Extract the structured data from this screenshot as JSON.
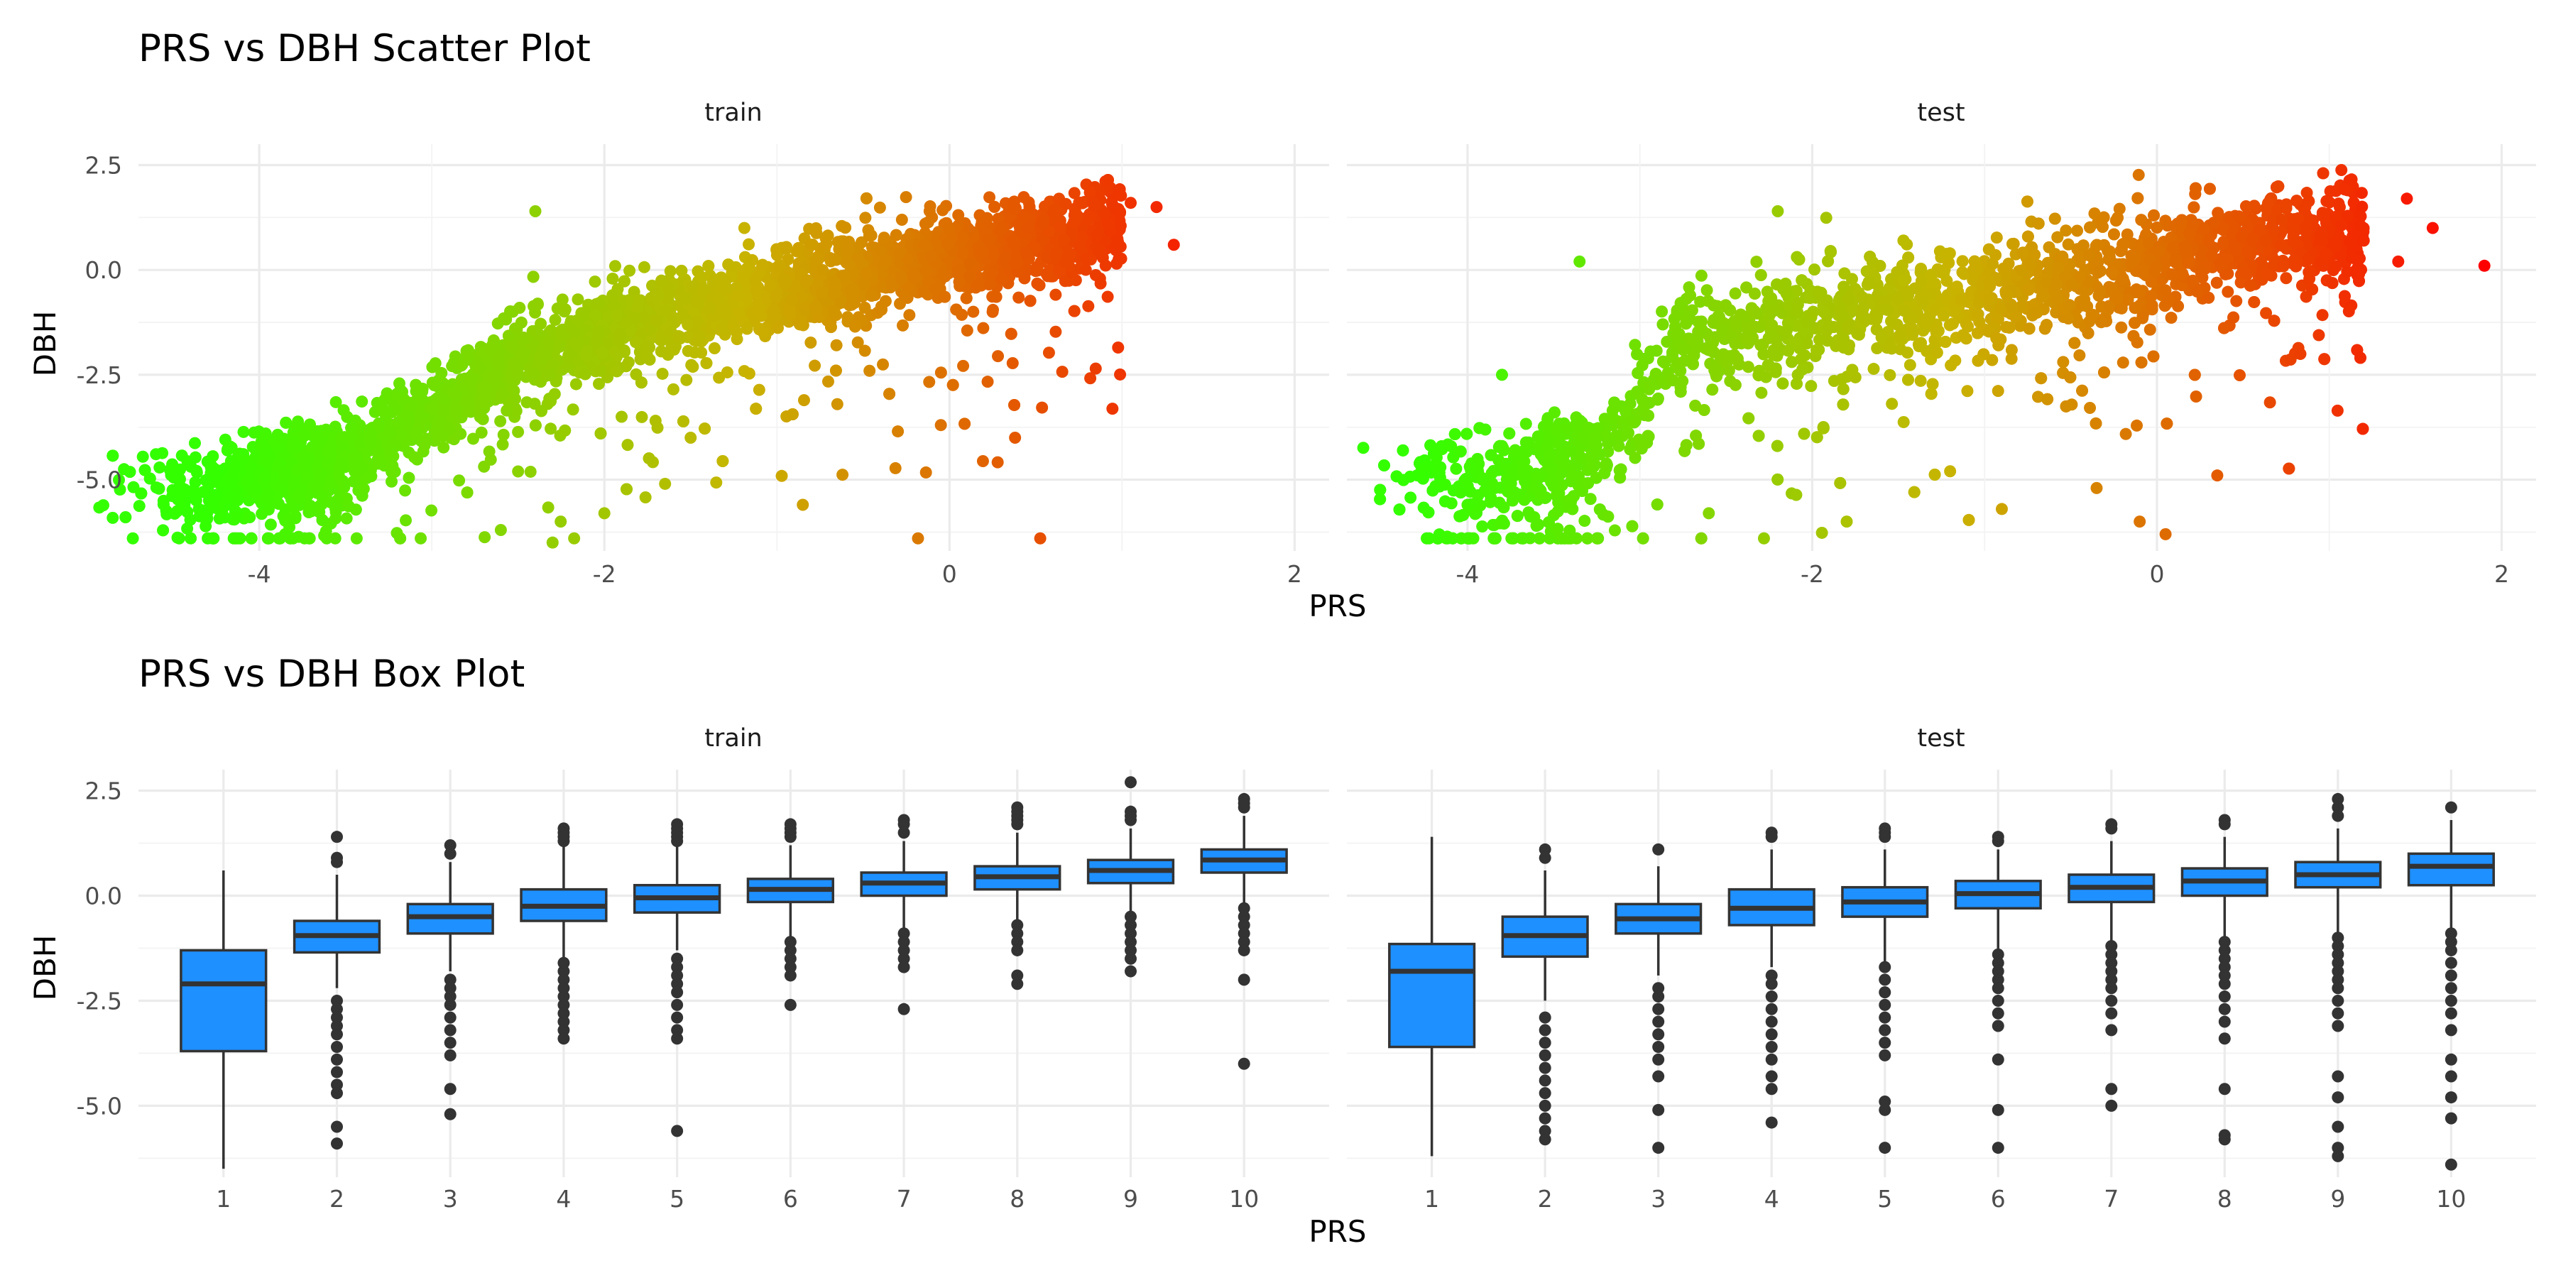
{
  "chart_data": [
    {
      "type": "scatter",
      "title": "PRS vs DBH Scatter Plot",
      "xlabel": "PRS",
      "ylabel": "DBH",
      "xlim": [
        -4.7,
        2.2
      ],
      "ylim": [
        -6.7,
        3.0
      ],
      "x_ticks": [
        -4,
        -2,
        0,
        2
      ],
      "x_tick_labels": [
        "-4",
        "-2",
        "0",
        "2"
      ],
      "y_ticks": [
        2.5,
        0.0,
        -2.5,
        -5.0
      ],
      "y_tick_labels": [
        "2.5",
        "0.0",
        "-2.5",
        "-5.0"
      ],
      "grid": true,
      "color_scale": {
        "low": "#33ff00",
        "mid": "#c8b400",
        "high": "#ff0000"
      },
      "panels": [
        {
          "name": "train",
          "trend": {
            "x": [
              -4.3,
              -3.5,
              -3.0,
              -2.5,
              -2.0,
              -1.5,
              -1.0,
              -0.5,
              0.0,
              0.5,
              1.0,
              1.3
            ],
            "y": [
              -5.2,
              -4.6,
              -3.3,
              -2.2,
              -1.5,
              -0.9,
              -0.5,
              -0.1,
              0.3,
              0.7,
              1.1,
              1.2
            ]
          },
          "n_points": 3600,
          "outliers": [
            [
              -4.35,
              -5.7
            ],
            [
              -4.2,
              -5.9
            ],
            [
              -4.25,
              -4.9
            ],
            [
              -3.85,
              -6.3
            ],
            [
              -2.6,
              -6.2
            ],
            [
              -2.3,
              -6.5
            ],
            [
              -2.0,
              -5.8
            ],
            [
              -0.85,
              -5.6
            ],
            [
              0.38,
              -4.0
            ],
            [
              0.25,
              -1.0
            ],
            [
              1.2,
              1.5
            ],
            [
              1.3,
              0.6
            ],
            [
              1.05,
              1.6
            ],
            [
              -0.65,
              -3.2
            ],
            [
              -1.5,
              -4.0
            ],
            [
              -1.9,
              -3.5
            ],
            [
              -2.4,
              1.4
            ]
          ]
        },
        {
          "name": "test",
          "trend": {
            "x": [
              -4.0,
              -3.6,
              -3.2,
              -2.8,
              -2.4,
              -2.0,
              -1.5,
              -1.0,
              -0.5,
              0.0,
              0.5,
              1.0,
              1.5
            ],
            "y": [
              -5.2,
              -4.8,
              -4.3,
              -1.8,
              -1.4,
              -1.1,
              -0.8,
              -0.5,
              -0.2,
              0.2,
              0.6,
              0.8,
              0.9
            ]
          },
          "n_points": 3000,
          "outliers": [
            [
              -4.15,
              -4.2
            ],
            [
              -4.0,
              -5.6
            ],
            [
              -3.8,
              -2.5
            ],
            [
              -3.6,
              -6.1
            ],
            [
              -3.35,
              0.2
            ],
            [
              -2.6,
              -5.8
            ],
            [
              -2.2,
              1.4
            ],
            [
              -1.8,
              -6.0
            ],
            [
              -0.1,
              -6.0
            ],
            [
              0.05,
              -6.3
            ],
            [
              0.35,
              -4.9
            ],
            [
              1.45,
              1.7
            ],
            [
              1.6,
              1.0
            ],
            [
              1.9,
              0.1
            ],
            [
              1.4,
              0.2
            ],
            [
              1.2,
              0.7
            ],
            [
              -0.35,
              -5.2
            ],
            [
              -0.9,
              -5.7
            ],
            [
              -1.2,
              -4.8
            ]
          ]
        }
      ]
    },
    {
      "type": "box",
      "title": "PRS vs DBH Box Plot",
      "xlabel": "PRS",
      "ylabel": "DBH",
      "categories": [
        "1",
        "2",
        "3",
        "4",
        "5",
        "6",
        "7",
        "8",
        "9",
        "10"
      ],
      "ylim": [
        -6.7,
        3.0
      ],
      "y_ticks": [
        2.5,
        0.0,
        -2.5,
        -5.0
      ],
      "y_tick_labels": [
        "2.5",
        "0.0",
        "-2.5",
        "-5.0"
      ],
      "grid": true,
      "fill_color": "#1e90ff",
      "line_color": "#333333",
      "panels": [
        {
          "name": "train",
          "boxes": [
            {
              "min": -6.5,
              "q1": -3.7,
              "median": -2.1,
              "q3": -1.3,
              "max": 0.6,
              "outliers": []
            },
            {
              "min": -2.2,
              "q1": -1.35,
              "median": -0.95,
              "q3": -0.6,
              "max": 0.5,
              "outliers": [
                1.4,
                0.9,
                0.8,
                -2.5,
                -2.7,
                -2.9,
                -3.1,
                -3.3,
                -3.6,
                -3.9,
                -4.2,
                -4.5,
                -4.7,
                -5.5,
                -5.9
              ]
            },
            {
              "min": -1.8,
              "q1": -0.9,
              "median": -0.5,
              "q3": -0.2,
              "max": 0.8,
              "outliers": [
                1.2,
                1.0,
                -2.0,
                -2.2,
                -2.4,
                -2.6,
                -2.9,
                -3.2,
                -3.5,
                -3.8,
                -4.6,
                -5.2
              ]
            },
            {
              "min": -1.5,
              "q1": -0.6,
              "median": -0.25,
              "q3": 0.15,
              "max": 1.2,
              "outliers": [
                1.6,
                1.5,
                1.4,
                1.3,
                -1.6,
                -1.8,
                -2.0,
                -2.2,
                -2.4,
                -2.6,
                -2.8,
                -3.0,
                -3.2,
                -3.4
              ]
            },
            {
              "min": -1.3,
              "q1": -0.4,
              "median": -0.05,
              "q3": 0.25,
              "max": 1.2,
              "outliers": [
                1.7,
                1.6,
                1.5,
                1.4,
                1.3,
                -1.5,
                -1.7,
                -1.9,
                -2.1,
                -2.3,
                -2.6,
                -2.9,
                -3.2,
                -3.4,
                -5.6
              ]
            },
            {
              "min": -1.0,
              "q1": -0.15,
              "median": 0.15,
              "q3": 0.4,
              "max": 1.2,
              "outliers": [
                1.7,
                1.6,
                1.5,
                1.4,
                -1.1,
                -1.3,
                -1.5,
                -1.7,
                -1.9,
                -2.6
              ]
            },
            {
              "min": -0.8,
              "q1": 0.0,
              "median": 0.3,
              "q3": 0.55,
              "max": 1.3,
              "outliers": [
                1.8,
                1.7,
                1.5,
                -0.9,
                -1.1,
                -1.3,
                -1.5,
                -1.7,
                -2.7
              ]
            },
            {
              "min": -0.6,
              "q1": 0.15,
              "median": 0.45,
              "q3": 0.7,
              "max": 1.5,
              "outliers": [
                2.1,
                2.0,
                1.9,
                1.8,
                1.7,
                -0.7,
                -0.9,
                -1.1,
                -1.3,
                -1.9,
                -2.1
              ]
            },
            {
              "min": -0.4,
              "q1": 0.3,
              "median": 0.6,
              "q3": 0.85,
              "max": 1.6,
              "outliers": [
                2.7,
                2.0,
                1.9,
                1.8,
                -0.5,
                -0.7,
                -0.9,
                -1.1,
                -1.3,
                -1.5,
                -1.8
              ]
            },
            {
              "min": -0.2,
              "q1": 0.55,
              "median": 0.85,
              "q3": 1.1,
              "max": 1.9,
              "outliers": [
                2.3,
                2.2,
                2.1,
                -0.3,
                -0.5,
                -0.7,
                -0.9,
                -1.1,
                -1.3,
                -2.0,
                -4.0
              ]
            }
          ]
        },
        {
          "name": "test",
          "boxes": [
            {
              "min": -6.2,
              "q1": -3.6,
              "median": -1.8,
              "q3": -1.15,
              "max": 1.4,
              "outliers": []
            },
            {
              "min": -2.5,
              "q1": -1.45,
              "median": -0.95,
              "q3": -0.5,
              "max": 0.6,
              "outliers": [
                1.1,
                0.9,
                -2.9,
                -3.2,
                -3.5,
                -3.8,
                -4.1,
                -4.4,
                -4.7,
                -5.0,
                -5.3,
                -5.6,
                -5.8
              ]
            },
            {
              "min": -1.9,
              "q1": -0.9,
              "median": -0.55,
              "q3": -0.2,
              "max": 0.7,
              "outliers": [
                1.1,
                -2.2,
                -2.4,
                -2.7,
                -3.0,
                -3.3,
                -3.6,
                -3.9,
                -4.3,
                -5.1,
                -6.0
              ]
            },
            {
              "min": -1.7,
              "q1": -0.7,
              "median": -0.3,
              "q3": 0.15,
              "max": 1.1,
              "outliers": [
                1.5,
                1.4,
                -1.9,
                -2.1,
                -2.4,
                -2.7,
                -3.0,
                -3.3,
                -3.6,
                -3.9,
                -4.3,
                -4.6,
                -5.4
              ]
            },
            {
              "min": -1.6,
              "q1": -0.5,
              "median": -0.15,
              "q3": 0.2,
              "max": 1.1,
              "outliers": [
                1.6,
                1.5,
                1.4,
                -1.7,
                -2.0,
                -2.3,
                -2.6,
                -2.9,
                -3.2,
                -3.5,
                -3.8,
                -4.9,
                -5.1,
                -6.0
              ]
            },
            {
              "min": -1.3,
              "q1": -0.3,
              "median": 0.05,
              "q3": 0.35,
              "max": 1.1,
              "outliers": [
                1.4,
                1.3,
                -1.4,
                -1.6,
                -1.8,
                -2.0,
                -2.2,
                -2.5,
                -2.8,
                -3.1,
                -3.9,
                -5.1,
                -6.0
              ]
            },
            {
              "min": -1.1,
              "q1": -0.15,
              "median": 0.2,
              "q3": 0.5,
              "max": 1.3,
              "outliers": [
                1.7,
                1.6,
                -1.2,
                -1.4,
                -1.6,
                -1.8,
                -2.0,
                -2.2,
                -2.5,
                -2.8,
                -3.2,
                -4.6,
                -5.0
              ]
            },
            {
              "min": -1.0,
              "q1": 0.0,
              "median": 0.35,
              "q3": 0.65,
              "max": 1.4,
              "outliers": [
                1.8,
                1.7,
                -1.1,
                -1.3,
                -1.5,
                -1.7,
                -1.9,
                -2.1,
                -2.4,
                -2.7,
                -3.0,
                -3.4,
                -4.6,
                -5.7,
                -5.8
              ]
            },
            {
              "min": -0.9,
              "q1": 0.2,
              "median": 0.5,
              "q3": 0.8,
              "max": 1.6,
              "outliers": [
                2.3,
                2.1,
                1.9,
                -1.0,
                -1.2,
                -1.4,
                -1.6,
                -1.8,
                -2.0,
                -2.2,
                -2.5,
                -2.8,
                -3.1,
                -4.3,
                -4.8,
                -5.5,
                -6.0,
                -6.2
              ]
            },
            {
              "min": -0.8,
              "q1": 0.25,
              "median": 0.7,
              "q3": 1.0,
              "max": 1.8,
              "outliers": [
                2.1,
                -0.9,
                -1.1,
                -1.3,
                -1.6,
                -1.9,
                -2.2,
                -2.5,
                -2.8,
                -3.2,
                -3.9,
                -4.3,
                -4.8,
                -5.3,
                -6.4
              ]
            }
          ]
        }
      ]
    }
  ]
}
